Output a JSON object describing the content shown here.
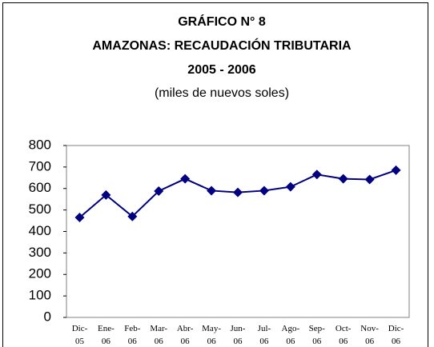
{
  "chart_data": {
    "type": "line",
    "title": [
      "GRÁFICO N° 8",
      "AMAZONAS: RECAUDACIÓN TRIBUTARIA",
      "2005 - 2006"
    ],
    "subtitle": "(miles de nuevos soles)",
    "categories": [
      "Dic-05",
      "Ene-06",
      "Feb-06",
      "Mar-06",
      "Abr-06",
      "May-06",
      "Jun-06",
      "Jul-06",
      "Ago-06",
      "Sep-06",
      "Oct-06",
      "Nov-06",
      "Dic-06"
    ],
    "series": [
      {
        "color": "#000080",
        "values": [
          465,
          570,
          470,
          588,
          645,
          590,
          582,
          590,
          608,
          665,
          645,
          642,
          685
        ]
      }
    ],
    "ylim": [
      0,
      800
    ],
    "yticks": [
      0,
      100,
      200,
      300,
      400,
      500,
      600,
      700,
      800
    ]
  }
}
